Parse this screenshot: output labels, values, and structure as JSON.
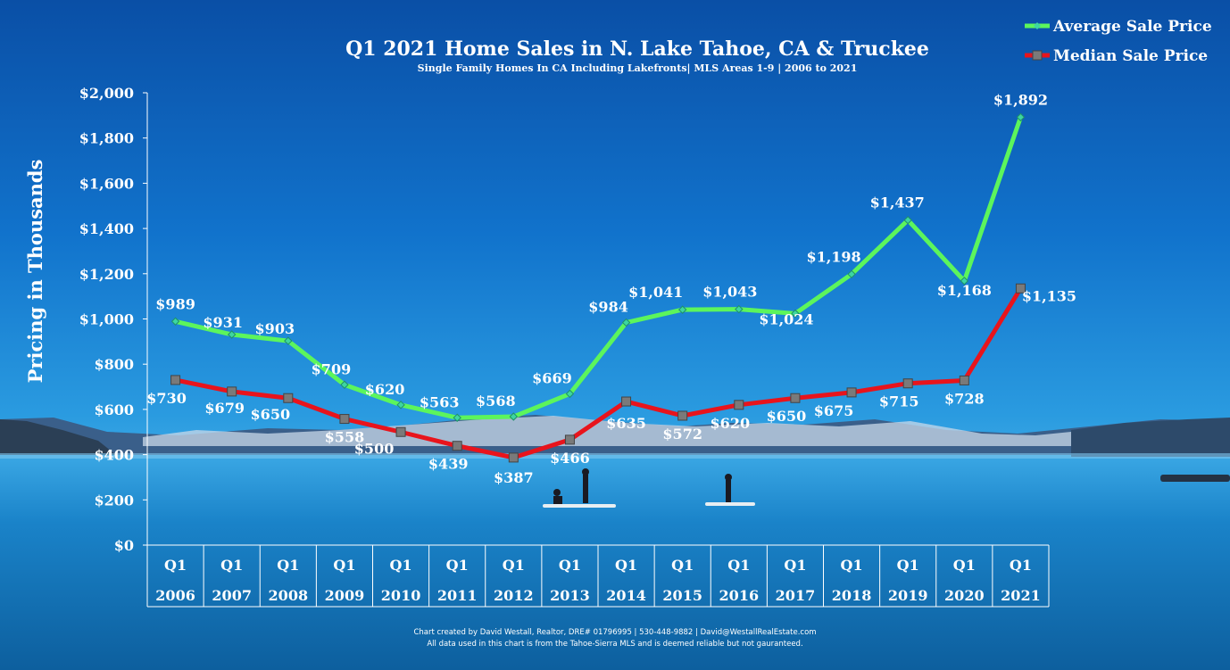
{
  "chart_data": {
    "type": "line",
    "title": "Q1 2021 Home Sales in N. Lake Tahoe, CA & Truckee",
    "subtitle": "Single Family Homes In CA Including Lakefronts| MLS Areas 1-9 | 2006 to 2021",
    "ylabel": "Pricing in Thousands",
    "ylim": [
      0,
      2000
    ],
    "yticks": [
      "$0",
      "$200",
      "$400",
      "$600",
      "$800",
      "$1,000",
      "$1,200",
      "$1,400",
      "$1,600",
      "$1,800",
      "$2,000"
    ],
    "quarter_label": "Q1",
    "categories": [
      "2006",
      "2007",
      "2008",
      "2009",
      "2010",
      "2011",
      "2012",
      "2013",
      "2014",
      "2015",
      "2016",
      "2017",
      "2018",
      "2019",
      "2020",
      "2021"
    ],
    "series": [
      {
        "name": "Average Sale Price",
        "color": "#5cf55c",
        "values": [
          989,
          931,
          903,
          709,
          620,
          563,
          568,
          669,
          984,
          1041,
          1043,
          1024,
          1198,
          1437,
          1168,
          1892
        ],
        "labels": [
          "$989",
          "$931",
          "$903",
          "$709",
          "$620",
          "$563",
          "$568",
          "$669",
          "$984",
          "$1,041",
          "$1,043",
          "$1,024",
          "$1,198",
          "$1,437",
          "$1,168",
          "$1,892"
        ]
      },
      {
        "name": "Median Sale Price",
        "color": "#e8141c",
        "values": [
          730,
          679,
          650,
          558,
          500,
          439,
          387,
          466,
          635,
          572,
          620,
          650,
          675,
          715,
          728,
          1135
        ],
        "labels": [
          "$730",
          "$679",
          "$650",
          "$558",
          "$500",
          "$439",
          "$387",
          "$466",
          "$635",
          "$572",
          "$620",
          "$650",
          "$675",
          "$715",
          "$728",
          "$1,135"
        ]
      }
    ],
    "legend_position": "top-right",
    "grid": false
  },
  "footer": {
    "line1": "Chart created by David Westall, Realtor, DRE# 01796995 | 530-448-9882 | David@WestallRealEstate.com",
    "line2": "All data used in this chart is from the Tahoe-Sierra MLS and is deemed reliable but  not gauranteed."
  }
}
